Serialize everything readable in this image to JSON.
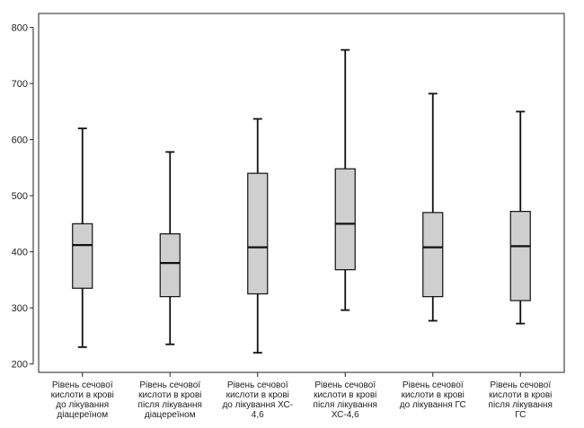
{
  "chart_data": {
    "type": "boxplot",
    "title": "",
    "xlabel": "",
    "ylabel": "",
    "ylim": [
      185,
      825
    ],
    "yticks": [
      200,
      300,
      400,
      500,
      600,
      700,
      800
    ],
    "grid": false,
    "box_fill": "#cfcfcf",
    "categories": [
      [
        "Рівень сечової",
        "кислоти в крові",
        "до лікування",
        "діацереїном"
      ],
      [
        "Рівень сечової",
        "кислоти в крові",
        "після лікування",
        "діацереїном"
      ],
      [
        "Рівень сечової",
        "кислоти в крові",
        "до лікування ХС-",
        "4,6"
      ],
      [
        "Рівень сечової",
        "кислоти в крові",
        "після лікування",
        "ХС-4,6"
      ],
      [
        "Рівень сечової",
        "кислоти в крові",
        "до лікування ГС"
      ],
      [
        "Рівень сечової",
        "кислоти в крові",
        "після лікування",
        "ГС"
      ]
    ],
    "boxes": [
      {
        "min": 230,
        "q1": 335,
        "median": 412,
        "q3": 450,
        "max": 620
      },
      {
        "min": 235,
        "q1": 320,
        "median": 380,
        "q3": 432,
        "max": 578
      },
      {
        "min": 220,
        "q1": 325,
        "median": 408,
        "q3": 540,
        "max": 637
      },
      {
        "min": 296,
        "q1": 368,
        "median": 450,
        "q3": 548,
        "max": 760
      },
      {
        "min": 277,
        "q1": 320,
        "median": 408,
        "q3": 470,
        "max": 682
      },
      {
        "min": 272,
        "q1": 313,
        "median": 410,
        "q3": 472,
        "max": 650
      }
    ]
  }
}
